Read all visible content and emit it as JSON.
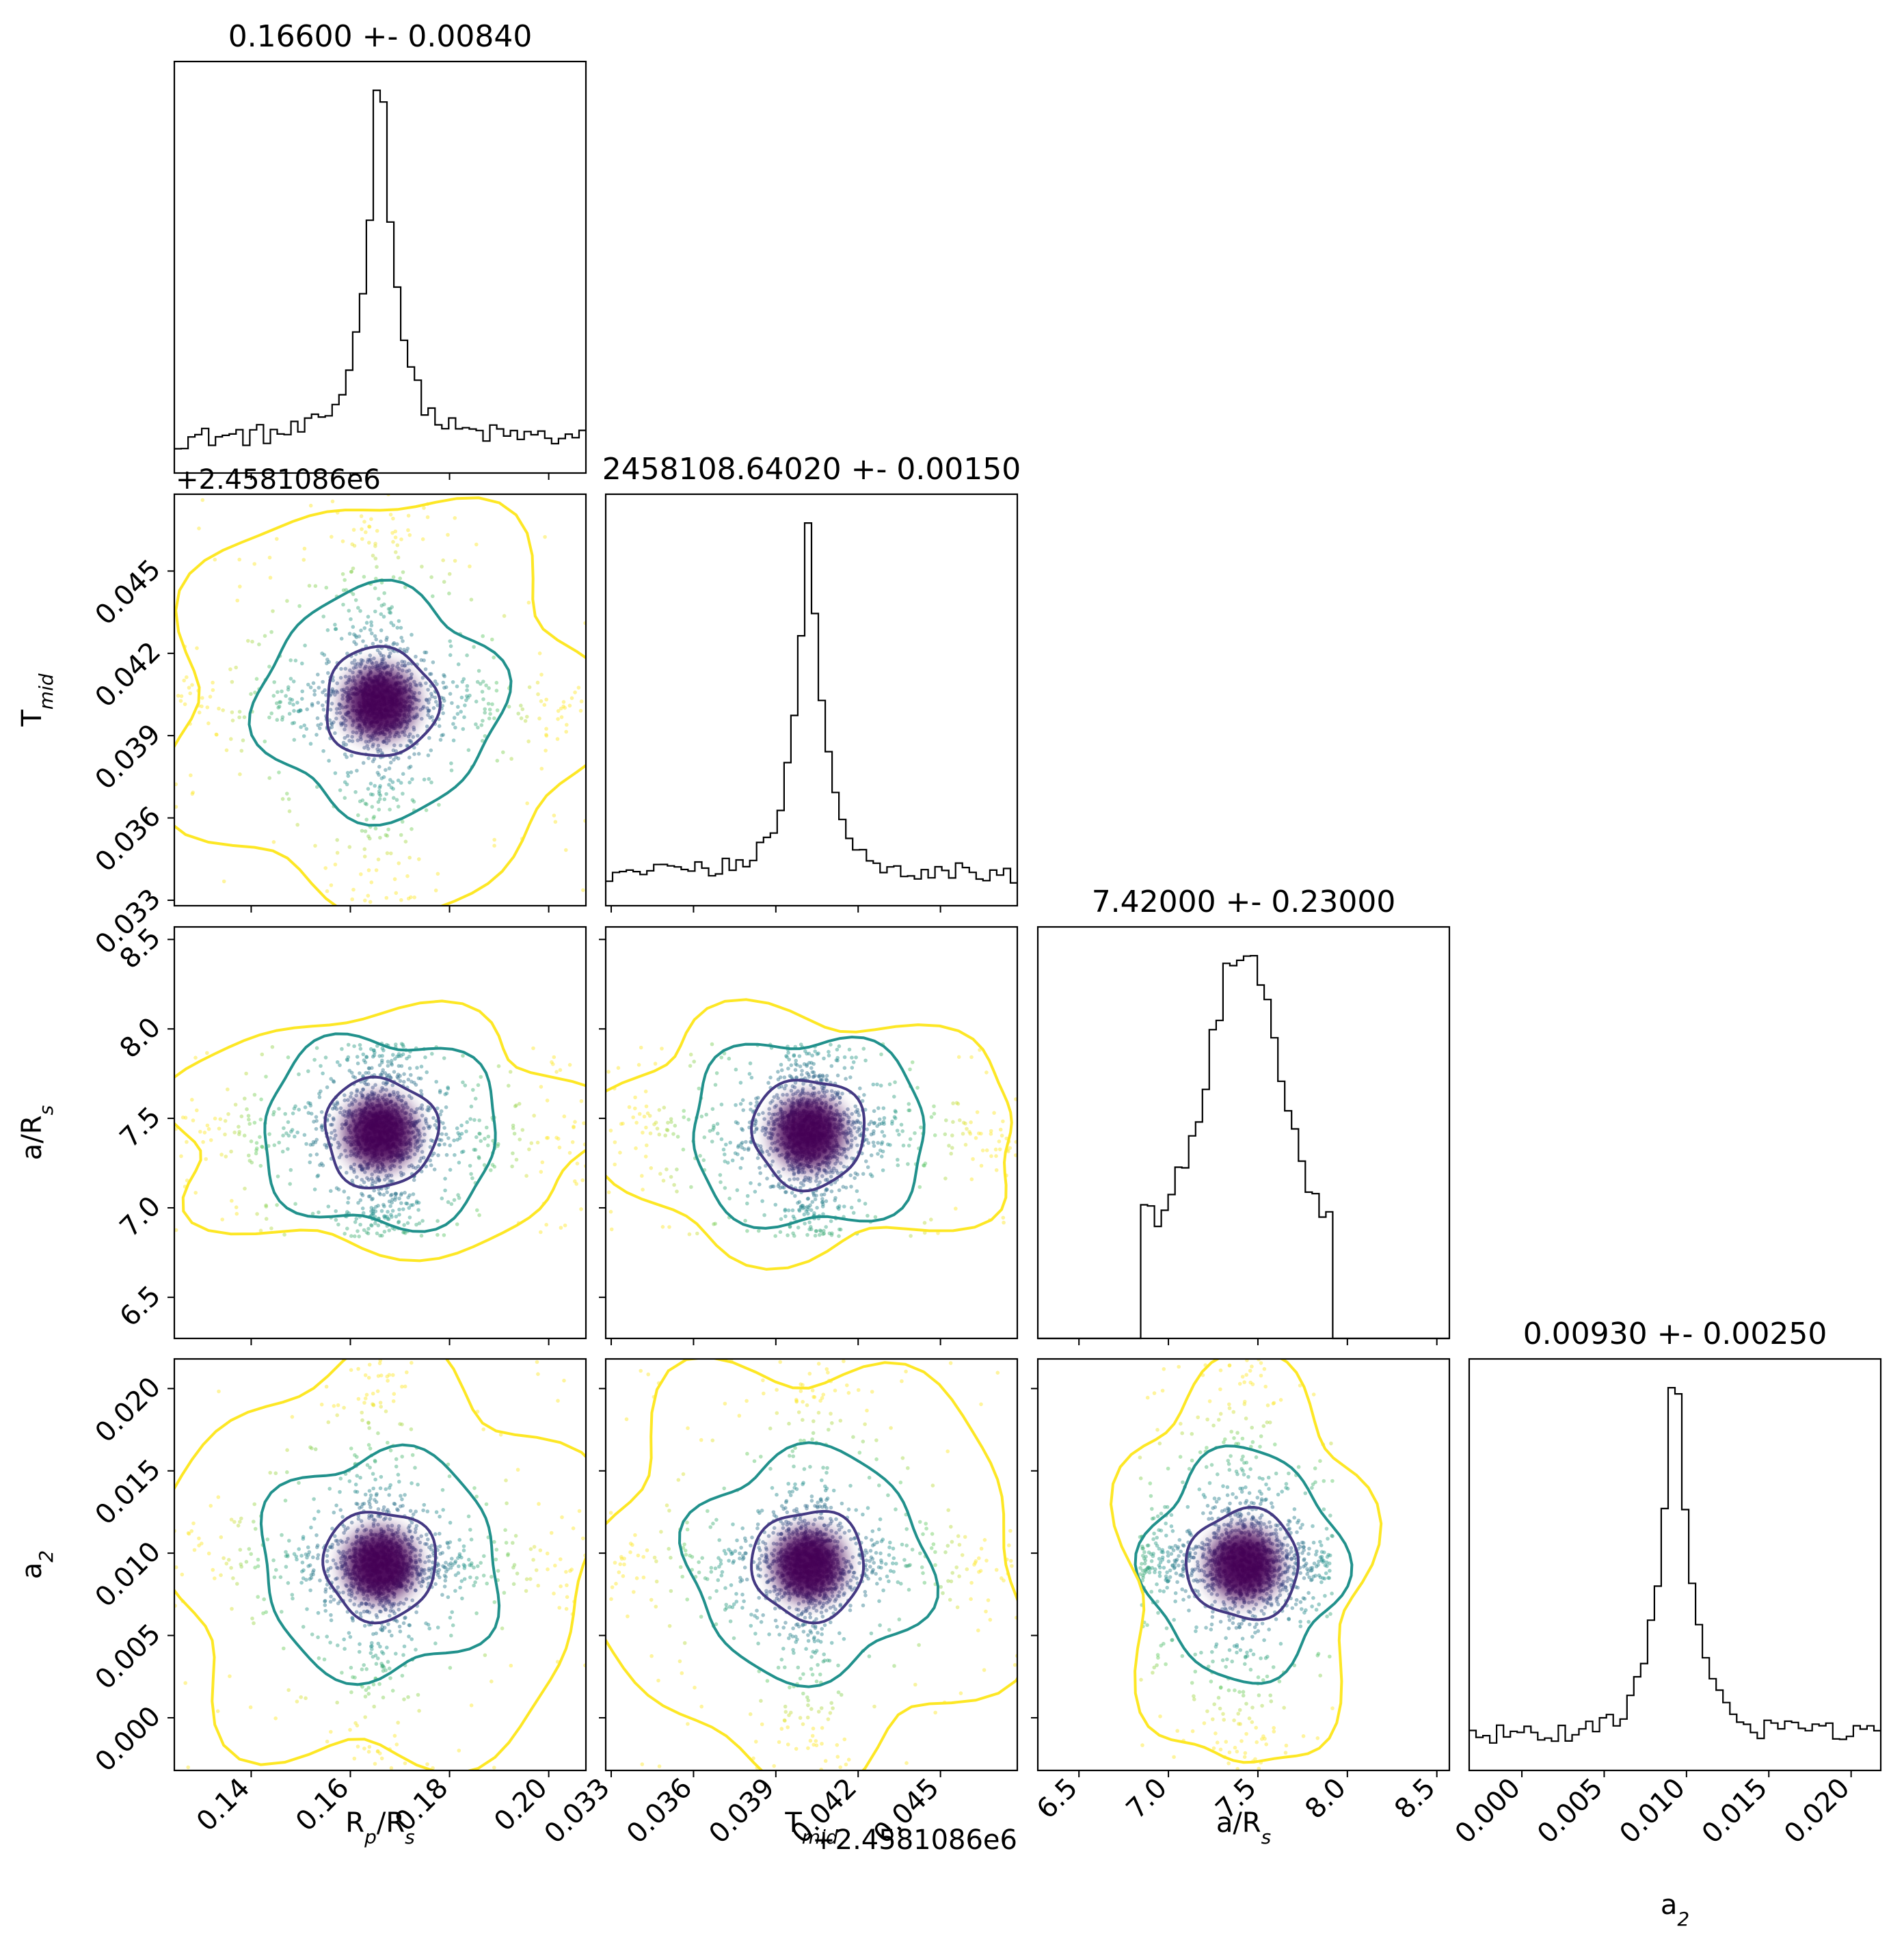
{
  "chart_data": {
    "type": "scatter",
    "subtype": "corner-plot",
    "parameters": [
      {
        "key": "rp",
        "xlabel_main": "R",
        "xlabel_sub": "p",
        "xlabel_tail": "/R",
        "xlabel_tail_sub": "s",
        "title": "0.16600 +- 0.00840",
        "center": 0.166,
        "range": [
          0.1245,
          0.2075
        ],
        "ticks": [
          0.14,
          0.16,
          0.18,
          0.2
        ],
        "tick_labels": [
          "0.14",
          "0.16",
          "0.18",
          "0.20"
        ]
      },
      {
        "key": "tmid",
        "xlabel_main": "T",
        "xlabel_sub": "mid",
        "title": "2458108.64020 +- 0.00150",
        "offset_text": "+2.4581086e6",
        "center": 0.0402,
        "range": [
          0.0328,
          0.0478
        ],
        "ticks": [
          0.033,
          0.036,
          0.039,
          0.042,
          0.045
        ],
        "tick_labels": [
          "0.033",
          "0.036",
          "0.039",
          "0.042",
          "0.045"
        ]
      },
      {
        "key": "ars",
        "xlabel_main": "a/R",
        "xlabel_sub": "s",
        "title": "7.42000 +- 0.23000",
        "center": 7.42,
        "range": [
          6.27,
          8.57
        ],
        "prior": [
          6.84,
          7.92
        ],
        "ticks": [
          6.5,
          7.0,
          7.5,
          8.0,
          8.5
        ],
        "tick_labels": [
          "6.5",
          "7.0",
          "7.5",
          "8.0",
          "8.5"
        ]
      },
      {
        "key": "a2",
        "xlabel_main": "a",
        "xlabel_sub": "2",
        "title": "0.00930 +- 0.00250",
        "center": 0.0093,
        "range": [
          -0.0032,
          0.0218
        ],
        "ticks": [
          0.0,
          0.005,
          0.01,
          0.015,
          0.02
        ],
        "tick_labels": [
          "0.000",
          "0.005",
          "0.010",
          "0.015",
          "0.020"
        ]
      }
    ],
    "histogram_peaks": {
      "rp": [
        0.154,
        0.158,
        0.162,
        0.166,
        0.17
      ],
      "tmid": [
        0.0396,
        0.0401,
        0.0404,
        0.0408
      ],
      "ars": [
        6.9,
        7.2,
        7.42,
        7.6,
        7.8
      ],
      "a2": [
        0.0085,
        0.0093,
        0.01,
        0.0125
      ]
    },
    "contour_levels": [
      "inner",
      "middle",
      "outer"
    ],
    "colors": {
      "inner": "#443983",
      "middle": "#21918c",
      "outer": "#fde725",
      "core": "#440154",
      "histogram": "#000000"
    },
    "scatter_colormap": "viridis",
    "grid": false,
    "legend": "none"
  }
}
